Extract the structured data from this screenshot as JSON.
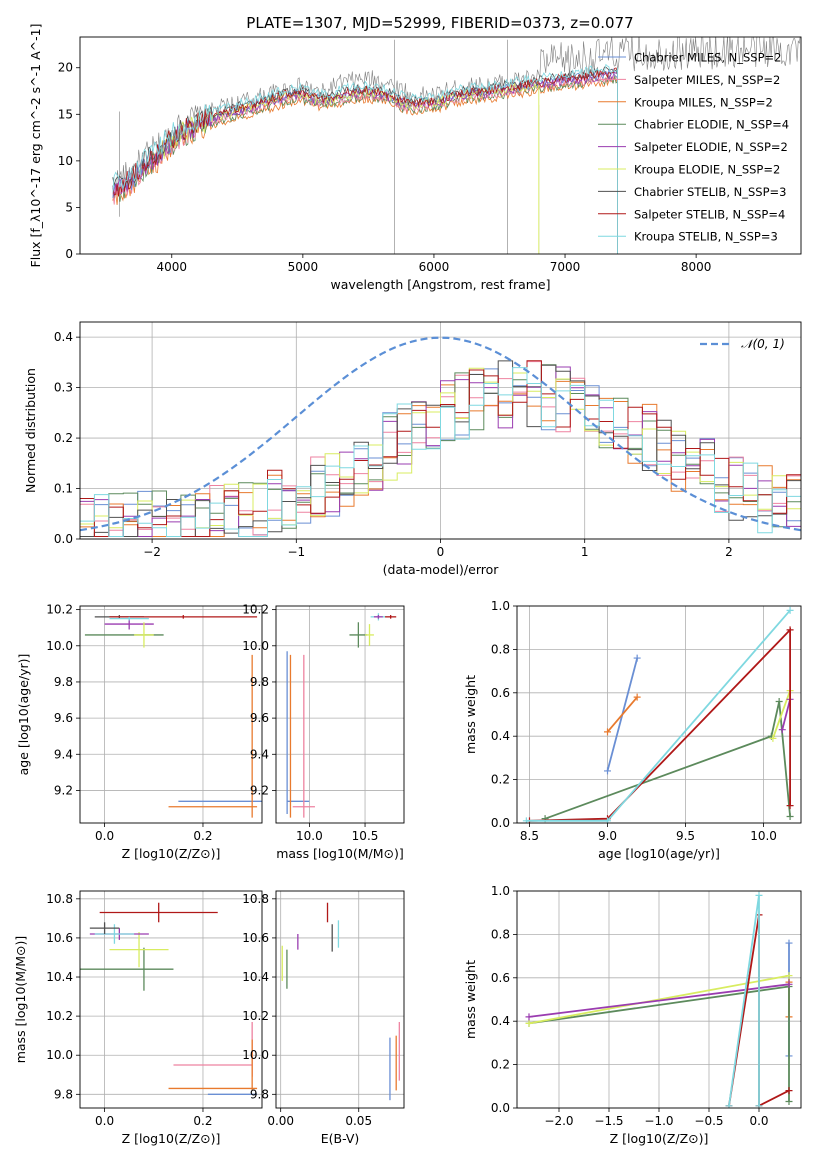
{
  "figure": {
    "title": "PLATE=1307, MJD=52999, FIBERID=0373, z=0.077"
  },
  "colors": {
    "chabrier_miles": "#6a8fd4",
    "salpeter_miles": "#ee82a0",
    "kroupa_miles": "#e87a2e",
    "chabrier_elodie": "#5c8a5c",
    "salpeter_elodie": "#9a3cb0",
    "kroupa_elodie": "#d8ec60",
    "chabrier_stelib": "#505050",
    "salpeter_stelib": "#b01818",
    "kroupa_stelib": "#7fd8e0",
    "data": "#808080",
    "normal": "#5b8fd6"
  },
  "chart_data": [
    {
      "id": "spectrum",
      "type": "line",
      "xlabel": "wavelength [Angstrom, rest frame]",
      "ylabel": "Flux [f_λ10^-17 erg cm^-2 s^-1 A^-1]",
      "xlim": [
        3300,
        8800
      ],
      "ylim": [
        0,
        23.3
      ],
      "xticks": [
        4000,
        5000,
        6000,
        7000,
        8000
      ],
      "yticks": [
        0,
        5,
        10,
        15,
        20
      ],
      "legend_position": "upper-right",
      "legend": [
        "Chabrier MILES, N_SSP=2",
        "Salpeter MILES, N_SSP=2",
        "Kroupa MILES, N_SSP=2",
        "Chabrier ELODIE, N_SSP=4",
        "Salpeter ELODIE, N_SSP=2",
        "Kroupa ELODIE, N_SSP=2",
        "Chabrier STELIB, N_SSP=3",
        "Salpeter STELIB, N_SSP=4",
        "Kroupa STELIB, N_SSP=3"
      ],
      "continuum": {
        "x": [
          3550,
          3700,
          3800,
          3900,
          4000,
          4100,
          4200,
          4300,
          4400,
          4500,
          4600,
          4700,
          4800,
          4900,
          5000,
          5100,
          5200,
          5300,
          5400,
          5500,
          5600,
          5700,
          5800,
          5900,
          6000,
          6100,
          6200,
          6300,
          6400,
          6500,
          6600,
          6700,
          6800,
          6900,
          7000,
          7100,
          7200,
          7300,
          7400
        ],
        "y": [
          6.5,
          7.8,
          9.5,
          10.5,
          12.0,
          13.0,
          13.8,
          14.3,
          14.8,
          15.2,
          15.6,
          16.0,
          16.4,
          16.8,
          17.0,
          16.4,
          16.3,
          16.8,
          17.1,
          17.2,
          17.0,
          16.5,
          15.8,
          16.0,
          16.0,
          16.5,
          16.9,
          17.0,
          17.1,
          17.4,
          17.6,
          17.8,
          18.0,
          18.3,
          18.5,
          18.6,
          18.8,
          19.0,
          19.1
        ]
      }
    },
    {
      "id": "residuals",
      "type": "histogram",
      "xlabel": "(data-model)/error",
      "ylabel": "Normed distribution",
      "xlim": [
        -2.5,
        2.5
      ],
      "ylim": [
        0,
        0.43
      ],
      "xticks": [
        -2,
        -1,
        0,
        1,
        2
      ],
      "yticks": [
        0.0,
        0.1,
        0.2,
        0.3,
        0.4
      ],
      "grid": true,
      "legend_position": "upper-right",
      "legend": [
        "𝒩(0, 1)"
      ],
      "bin_width": 0.1,
      "bin_start": -2.5
    },
    {
      "id": "age_vs_Z",
      "type": "errorbar",
      "xlabel": "Z [log10(Z/Z⊙)]",
      "ylabel": "age  [log10(age/yr)]",
      "xlim": [
        -0.05,
        0.32
      ],
      "ylim": [
        9.02,
        10.22
      ],
      "xticks": [
        0.0,
        0.2
      ],
      "yticks": [
        9.2,
        9.4,
        9.6,
        9.8,
        10.0,
        10.2
      ],
      "grid": true,
      "points": [
        {
          "series": "chabrier_miles",
          "x": 0.25,
          "xerr": 0.1,
          "y": 9.14,
          "yerr": 0.0
        },
        {
          "series": "kroupa_miles",
          "x": 0.22,
          "xerr": 0.09,
          "y": 9.11,
          "yerr": 0.0
        },
        {
          "series": "kroupa_miles",
          "x": 0.3,
          "xerr": 0.0,
          "y": 9.5,
          "yerr": 0.45
        },
        {
          "series": "chabrier_elodie",
          "x": 0.04,
          "xerr": 0.08,
          "y": 10.06,
          "yerr": 0.0
        },
        {
          "series": "salpeter_elodie",
          "x": 0.05,
          "xerr": 0.05,
          "y": 10.12,
          "yerr": 0.03
        },
        {
          "series": "kroupa_elodie",
          "x": 0.08,
          "xerr": 0.02,
          "y": 10.06,
          "yerr": 0.07
        },
        {
          "series": "chabrier_stelib",
          "x": 0.03,
          "xerr": 0.05,
          "y": 10.16,
          "yerr": 0.01
        },
        {
          "series": "salpeter_stelib",
          "x": 0.16,
          "xerr": 0.15,
          "y": 10.16,
          "yerr": 0.01
        },
        {
          "series": "kroupa_stelib",
          "x": 0.05,
          "xerr": 0.04,
          "y": 10.15,
          "yerr": 0.01
        }
      ]
    },
    {
      "id": "age_vs_mass",
      "type": "errorbar",
      "xlabel": "mass [log10(M/M⊙)]",
      "xlim": [
        9.7,
        10.85
      ],
      "ylim": [
        9.02,
        10.22
      ],
      "xticks": [
        10.0,
        10.5
      ],
      "yticks": [
        9.2,
        9.4,
        9.6,
        9.8,
        10.0,
        10.2
      ],
      "grid": true,
      "points": [
        {
          "series": "chabrier_miles",
          "x": 9.8,
          "xerr": 0.0,
          "y": 9.52,
          "yerr": 0.45
        },
        {
          "series": "chabrier_miles",
          "x": 9.9,
          "xerr": 0.1,
          "y": 9.14,
          "yerr": 0.0
        },
        {
          "series": "salpeter_miles",
          "x": 9.95,
          "xerr": 0.0,
          "y": 9.5,
          "yerr": 0.45
        },
        {
          "series": "salpeter_miles",
          "x": 9.95,
          "xerr": 0.1,
          "y": 9.11,
          "yerr": 0.0
        },
        {
          "series": "kroupa_miles",
          "x": 9.83,
          "xerr": 0.0,
          "y": 9.5,
          "yerr": 0.45
        },
        {
          "series": "chabrier_elodie",
          "x": 10.44,
          "xerr": 0.08,
          "y": 10.06,
          "yerr": 0.07
        },
        {
          "series": "kroupa_elodie",
          "x": 10.54,
          "xerr": 0.04,
          "y": 10.06,
          "yerr": 0.06
        },
        {
          "series": "kroupa_stelib",
          "x": 10.62,
          "xerr": 0.07,
          "y": 10.16,
          "yerr": 0.02
        },
        {
          "series": "salpeter_stelib",
          "x": 10.73,
          "xerr": 0.05,
          "y": 10.16,
          "yerr": 0.01
        },
        {
          "series": "salpeter_elodie",
          "x": 10.62,
          "xerr": 0.04,
          "y": 10.16,
          "yerr": 0.01
        }
      ]
    },
    {
      "id": "weight_vs_age",
      "type": "line",
      "xlabel": "age  [log10(age/yr)]",
      "ylabel": "mass weight",
      "xlim": [
        8.42,
        10.24
      ],
      "ylim": [
        0,
        1
      ],
      "xticks": [
        8.5,
        9.0,
        9.5,
        10.0
      ],
      "yticks": [
        0.0,
        0.2,
        0.4,
        0.6,
        0.8,
        1.0
      ],
      "grid": true,
      "series": [
        {
          "series": "chabrier_miles",
          "x": [
            9.0,
            9.19
          ],
          "y": [
            0.24,
            0.76
          ]
        },
        {
          "series": "kroupa_miles",
          "x": [
            9.0,
            9.19
          ],
          "y": [
            0.42,
            0.58
          ]
        },
        {
          "series": "chabrier_elodie",
          "x": [
            8.6,
            10.05,
            10.1,
            10.17
          ],
          "y": [
            0.02,
            0.4,
            0.56,
            0.03
          ]
        },
        {
          "series": "kroupa_elodie",
          "x": [
            10.06,
            10.17
          ],
          "y": [
            0.39,
            0.61
          ]
        },
        {
          "series": "salpeter_elodie",
          "x": [
            10.12,
            10.17
          ],
          "y": [
            0.43,
            0.57
          ]
        },
        {
          "series": "salpeter_stelib",
          "x": [
            8.5,
            9.0,
            10.17,
            10.17
          ],
          "y": [
            0.01,
            0.02,
            0.89,
            0.08
          ]
        },
        {
          "series": "kroupa_stelib",
          "x": [
            8.48,
            9.0,
            10.17
          ],
          "y": [
            0.01,
            0.01,
            0.98
          ]
        }
      ]
    },
    {
      "id": "mass_vs_Z",
      "type": "errorbar",
      "xlabel": "Z [log10(Z/Z⊙)]",
      "ylabel": "mass [log10(M/M⊙)]",
      "xlim": [
        -0.05,
        0.32
      ],
      "ylim": [
        9.73,
        10.84
      ],
      "xticks": [
        0.0,
        0.2
      ],
      "yticks": [
        9.8,
        10.0,
        10.2,
        10.4,
        10.6,
        10.8
      ],
      "grid": true,
      "points": [
        {
          "series": "chabrier_miles",
          "x": 0.26,
          "xerr": 0.05,
          "y": 9.8,
          "yerr": 0.0
        },
        {
          "series": "kroupa_miles",
          "x": 0.22,
          "xerr": 0.09,
          "y": 9.83,
          "yerr": 0.0
        },
        {
          "series": "salpeter_miles",
          "x": 0.22,
          "xerr": 0.08,
          "y": 9.95,
          "yerr": 0.0
        },
        {
          "series": "salpeter_miles",
          "x": 0.3,
          "xerr": 0.0,
          "y": 10.03,
          "yerr": 0.14
        },
        {
          "series": "kroupa_miles",
          "x": 0.3,
          "xerr": 0.0,
          "y": 9.95,
          "yerr": 0.13
        },
        {
          "series": "chabrier_elodie",
          "x": 0.04,
          "xerr": 0.1,
          "y": 10.44,
          "yerr": 0.0
        },
        {
          "series": "chabrier_elodie",
          "x": 0.08,
          "xerr": 0.0,
          "y": 10.44,
          "yerr": 0.11
        },
        {
          "series": "kroupa_elodie",
          "x": 0.07,
          "xerr": 0.06,
          "y": 10.54,
          "yerr": 0.09
        },
        {
          "series": "salpeter_elodie",
          "x": 0.03,
          "xerr": 0.06,
          "y": 10.62,
          "yerr": 0.03
        },
        {
          "series": "kroupa_stelib",
          "x": 0.02,
          "xerr": 0.04,
          "y": 10.62,
          "yerr": 0.05
        },
        {
          "series": "chabrier_stelib",
          "x": 0.0,
          "xerr": 0.03,
          "y": 10.65,
          "yerr": 0.03
        },
        {
          "series": "salpeter_stelib",
          "x": 0.11,
          "xerr": 0.12,
          "y": 10.73,
          "yerr": 0.05
        }
      ]
    },
    {
      "id": "mass_vs_ebv",
      "type": "errorbar",
      "xlabel": "E(B-V)",
      "xlim": [
        -0.003,
        0.079
      ],
      "ylim": [
        9.73,
        10.84
      ],
      "xticks": [
        0.0,
        0.05
      ],
      "yticks": [
        9.8,
        10.0,
        10.2,
        10.4,
        10.6,
        10.8
      ],
      "grid": true,
      "points": [
        {
          "series": "kroupa_elodie",
          "x": 0.001,
          "xerr": 0.0,
          "y": 10.47,
          "yerr": 0.09
        },
        {
          "series": "chabrier_elodie",
          "x": 0.004,
          "xerr": 0.0,
          "y": 10.44,
          "yerr": 0.1
        },
        {
          "series": "salpeter_elodie",
          "x": 0.011,
          "xerr": 0.0,
          "y": 10.58,
          "yerr": 0.04
        },
        {
          "series": "salpeter_stelib",
          "x": 0.03,
          "xerr": 0.0,
          "y": 10.73,
          "yerr": 0.05
        },
        {
          "series": "chabrier_stelib",
          "x": 0.033,
          "xerr": 0.0,
          "y": 10.6,
          "yerr": 0.07
        },
        {
          "series": "kroupa_stelib",
          "x": 0.037,
          "xerr": 0.0,
          "y": 10.62,
          "yerr": 0.07
        },
        {
          "series": "chabrier_miles",
          "x": 0.07,
          "xerr": 0.0,
          "y": 9.93,
          "yerr": 0.16
        },
        {
          "series": "kroupa_miles",
          "x": 0.074,
          "xerr": 0.0,
          "y": 9.96,
          "yerr": 0.14
        },
        {
          "series": "salpeter_miles",
          "x": 0.076,
          "xerr": 0.0,
          "y": 10.02,
          "yerr": 0.15
        }
      ]
    },
    {
      "id": "weight_vs_Z",
      "type": "line",
      "xlabel": "Z [log10(Z/Z⊙)]",
      "ylabel": "mass weight",
      "xlim": [
        -2.42,
        0.42
      ],
      "ylim": [
        0,
        1
      ],
      "xticks": [
        -2.0,
        -1.5,
        -1.0,
        -0.5,
        0.0
      ],
      "yticks": [
        0.0,
        0.2,
        0.4,
        0.6,
        0.8,
        1.0
      ],
      "grid": true,
      "series": [
        {
          "series": "chabrier_miles",
          "x": [
            0.3,
            0.3
          ],
          "y": [
            0.24,
            0.76
          ]
        },
        {
          "series": "kroupa_miles",
          "x": [
            0.3,
            0.3
          ],
          "y": [
            0.42,
            0.58
          ]
        },
        {
          "series": "chabrier_elodie",
          "x": [
            -2.3,
            0.3,
            0.3
          ],
          "y": [
            0.39,
            0.56,
            0.03
          ]
        },
        {
          "series": "kroupa_elodie",
          "x": [
            -2.3,
            0.3
          ],
          "y": [
            0.39,
            0.61
          ]
        },
        {
          "series": "salpeter_elodie",
          "x": [
            -2.3,
            0.3
          ],
          "y": [
            0.42,
            0.57
          ]
        },
        {
          "series": "salpeter_stelib",
          "x": [
            -0.3,
            0.0,
            0.0,
            0.3
          ],
          "y": [
            0.01,
            0.89,
            0.01,
            0.08
          ]
        },
        {
          "series": "kroupa_stelib",
          "x": [
            -0.3,
            0.0,
            0.0
          ],
          "y": [
            0.01,
            0.98,
            0.01
          ]
        }
      ]
    }
  ]
}
